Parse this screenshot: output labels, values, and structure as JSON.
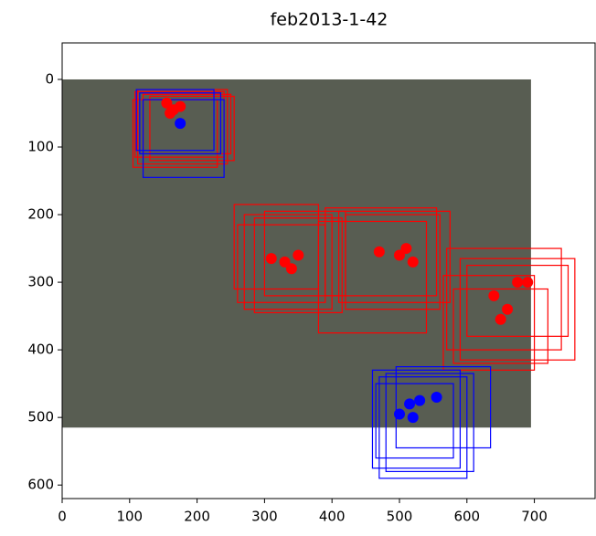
{
  "chart_data": {
    "type": "image",
    "title": "feb2013-1-42",
    "xlim": [
      0,
      790
    ],
    "ylim": [
      -54,
      620
    ],
    "y_inverted": true,
    "xticks": [
      0,
      100,
      200,
      300,
      400,
      500,
      600,
      700
    ],
    "yticks": [
      0,
      100,
      200,
      300,
      400,
      500,
      600
    ],
    "image": {
      "extent": [
        0,
        695,
        0,
        515
      ],
      "color": "#585d52"
    },
    "boxes": [
      {
        "color": "#ff0000",
        "boxes": [
          [
            108,
            18,
            240,
            115
          ],
          [
            112,
            15,
            245,
            125
          ],
          [
            120,
            22,
            250,
            110
          ],
          [
            105,
            30,
            230,
            130
          ],
          [
            130,
            25,
            255,
            120
          ],
          [
            255,
            185,
            380,
            310
          ],
          [
            270,
            200,
            400,
            340
          ],
          [
            285,
            205,
            415,
            345
          ],
          [
            260,
            215,
            390,
            330
          ],
          [
            300,
            195,
            420,
            320
          ],
          [
            390,
            190,
            555,
            320
          ],
          [
            410,
            195,
            575,
            330
          ],
          [
            380,
            210,
            540,
            375
          ],
          [
            420,
            200,
            560,
            340
          ],
          [
            570,
            250,
            740,
            400
          ],
          [
            590,
            265,
            760,
            415
          ],
          [
            565,
            290,
            700,
            430
          ],
          [
            600,
            275,
            750,
            380
          ],
          [
            580,
            310,
            720,
            420
          ]
        ]
      },
      {
        "color": "#0000ff",
        "boxes": [
          [
            115,
            20,
            235,
            110
          ],
          [
            120,
            30,
            240,
            145
          ],
          [
            110,
            15,
            225,
            105
          ],
          [
            460,
            430,
            590,
            575
          ],
          [
            470,
            440,
            600,
            590
          ],
          [
            495,
            425,
            635,
            545
          ],
          [
            465,
            450,
            580,
            560
          ],
          [
            480,
            435,
            610,
            580
          ]
        ]
      }
    ],
    "points": [
      {
        "color": "#ff0000",
        "x": [
          155,
          165,
          175,
          160,
          310,
          330,
          350,
          340,
          470,
          500,
          520,
          510,
          640,
          660,
          675,
          650,
          690
        ],
        "y": [
          35,
          45,
          40,
          50,
          265,
          270,
          260,
          280,
          255,
          260,
          270,
          250,
          320,
          340,
          300,
          355,
          300
        ]
      },
      {
        "color": "#0000ff",
        "x": [
          175,
          515,
          530,
          555,
          500,
          520
        ],
        "y": [
          65,
          480,
          475,
          470,
          495,
          500
        ]
      }
    ]
  }
}
